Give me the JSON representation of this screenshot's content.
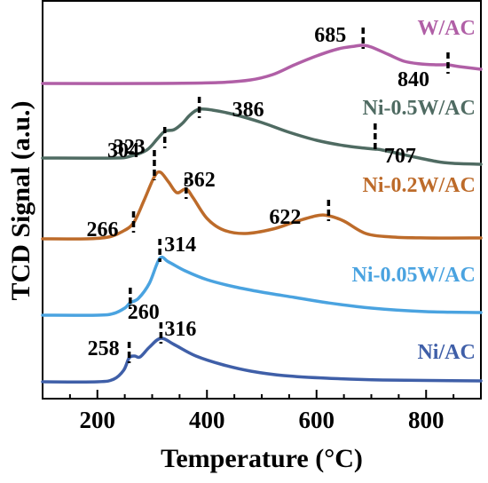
{
  "chart_data": {
    "type": "line",
    "xlabel": "Temperature (°C)",
    "ylabel": "TCD Signal (a.u.)",
    "xlim": [
      100,
      900
    ],
    "x_ticks": [
      200,
      400,
      600,
      800
    ],
    "grid": false,
    "series": [
      {
        "name": "W/AC",
        "color": "#b05fa6",
        "points": [
          [
            100,
            93
          ],
          [
            300,
            93
          ],
          [
            420,
            92
          ],
          [
            480,
            89
          ],
          [
            520,
            83
          ],
          [
            560,
            72
          ],
          [
            600,
            62
          ],
          [
            640,
            54
          ],
          [
            670,
            51
          ],
          [
            685,
            50
          ],
          [
            700,
            52
          ],
          [
            730,
            60
          ],
          [
            760,
            68
          ],
          [
            790,
            71
          ],
          [
            820,
            72
          ],
          [
            840,
            72
          ],
          [
            860,
            74
          ],
          [
            900,
            77
          ]
        ],
        "peaks": [
          685,
          840
        ]
      },
      {
        "name": "Ni-0.5W/AC",
        "color": "#4f6b62",
        "points": [
          [
            100,
            177
          ],
          [
            230,
            177
          ],
          [
            260,
            175
          ],
          [
            290,
            168
          ],
          [
            310,
            155
          ],
          [
            323,
            147
          ],
          [
            340,
            145
          ],
          [
            355,
            138
          ],
          [
            370,
            128
          ],
          [
            386,
            122
          ],
          [
            410,
            123
          ],
          [
            450,
            128
          ],
          [
            500,
            137
          ],
          [
            550,
            148
          ],
          [
            600,
            157
          ],
          [
            650,
            163
          ],
          [
            690,
            166
          ],
          [
            707,
            167
          ],
          [
            720,
            168
          ],
          [
            780,
            176
          ],
          [
            820,
            181
          ],
          [
            850,
            183
          ],
          [
            900,
            184
          ]
        ],
        "peaks": [
          323,
          386,
          707
        ]
      },
      {
        "name": "Ni-0.2W/AC",
        "color": "#bd6b2a",
        "points": [
          [
            100,
            268
          ],
          [
            180,
            268
          ],
          [
            220,
            266
          ],
          [
            245,
            260
          ],
          [
            266,
            250
          ],
          [
            285,
            225
          ],
          [
            304,
            198
          ],
          [
            315,
            193
          ],
          [
            330,
            204
          ],
          [
            345,
            216
          ],
          [
            362,
            212
          ],
          [
            375,
            222
          ],
          [
            400,
            245
          ],
          [
            430,
            258
          ],
          [
            470,
            262
          ],
          [
            520,
            257
          ],
          [
            560,
            249
          ],
          [
            600,
            242
          ],
          [
            622,
            242
          ],
          [
            650,
            248
          ],
          [
            690,
            262
          ],
          [
            740,
            266
          ],
          [
            800,
            267
          ],
          [
            900,
            267
          ]
        ],
        "peaks": [
          266,
          304,
          362,
          622
        ]
      },
      {
        "name": "Ni-0.05W/AC",
        "color": "#4aa3e0",
        "points": [
          [
            100,
            354
          ],
          [
            200,
            354
          ],
          [
            230,
            352
          ],
          [
            250,
            346
          ],
          [
            260,
            340
          ],
          [
            275,
            335
          ],
          [
            295,
            318
          ],
          [
            314,
            290
          ],
          [
            330,
            294
          ],
          [
            360,
            304
          ],
          [
            400,
            314
          ],
          [
            450,
            322
          ],
          [
            500,
            328
          ],
          [
            560,
            334
          ],
          [
            620,
            340
          ],
          [
            700,
            346
          ],
          [
            800,
            350
          ],
          [
            900,
            351
          ]
        ],
        "peaks": [
          260,
          314
        ]
      },
      {
        "name": "Ni/AC",
        "color": "#3f5fa8",
        "points": [
          [
            100,
            429
          ],
          [
            200,
            429
          ],
          [
            230,
            426
          ],
          [
            248,
            416
          ],
          [
            258,
            402
          ],
          [
            268,
            400
          ],
          [
            278,
            401
          ],
          [
            295,
            390
          ],
          [
            316,
            380
          ],
          [
            340,
            387
          ],
          [
            380,
            400
          ],
          [
            430,
            410
          ],
          [
            480,
            417
          ],
          [
            540,
            422
          ],
          [
            620,
            425
          ],
          [
            720,
            427
          ],
          [
            900,
            428
          ]
        ],
        "peaks": [
          258,
          316
        ]
      }
    ]
  }
}
